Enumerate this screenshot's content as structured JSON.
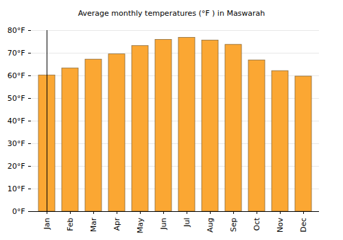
{
  "chart_data": {
    "type": "bar",
    "title": "Average monthly temperatures (°F ) in Maswarah",
    "categories": [
      "Jan",
      "Feb",
      "Mar",
      "Apr",
      "May",
      "Jun",
      "Jul",
      "Aug",
      "Sep",
      "Oct",
      "Nov",
      "Dec"
    ],
    "values": [
      60.2,
      63.3,
      67.2,
      69.5,
      73.2,
      75.9,
      76.8,
      75.6,
      73.7,
      66.8,
      62.1,
      59.7
    ],
    "color": "#fba733",
    "ylim": [
      0,
      80
    ],
    "yticks": [
      {
        "value": 0,
        "label": "0°F"
      },
      {
        "value": 10,
        "label": "10°F"
      },
      {
        "value": 20,
        "label": "20°F"
      },
      {
        "value": 30,
        "label": "30°F"
      },
      {
        "value": 40,
        "label": "40°F"
      },
      {
        "value": 50,
        "label": "50°F"
      },
      {
        "value": 60,
        "label": "60°F"
      },
      {
        "value": 70,
        "label": "70°F"
      },
      {
        "value": 80,
        "label": "80°F"
      }
    ],
    "grid": true
  }
}
